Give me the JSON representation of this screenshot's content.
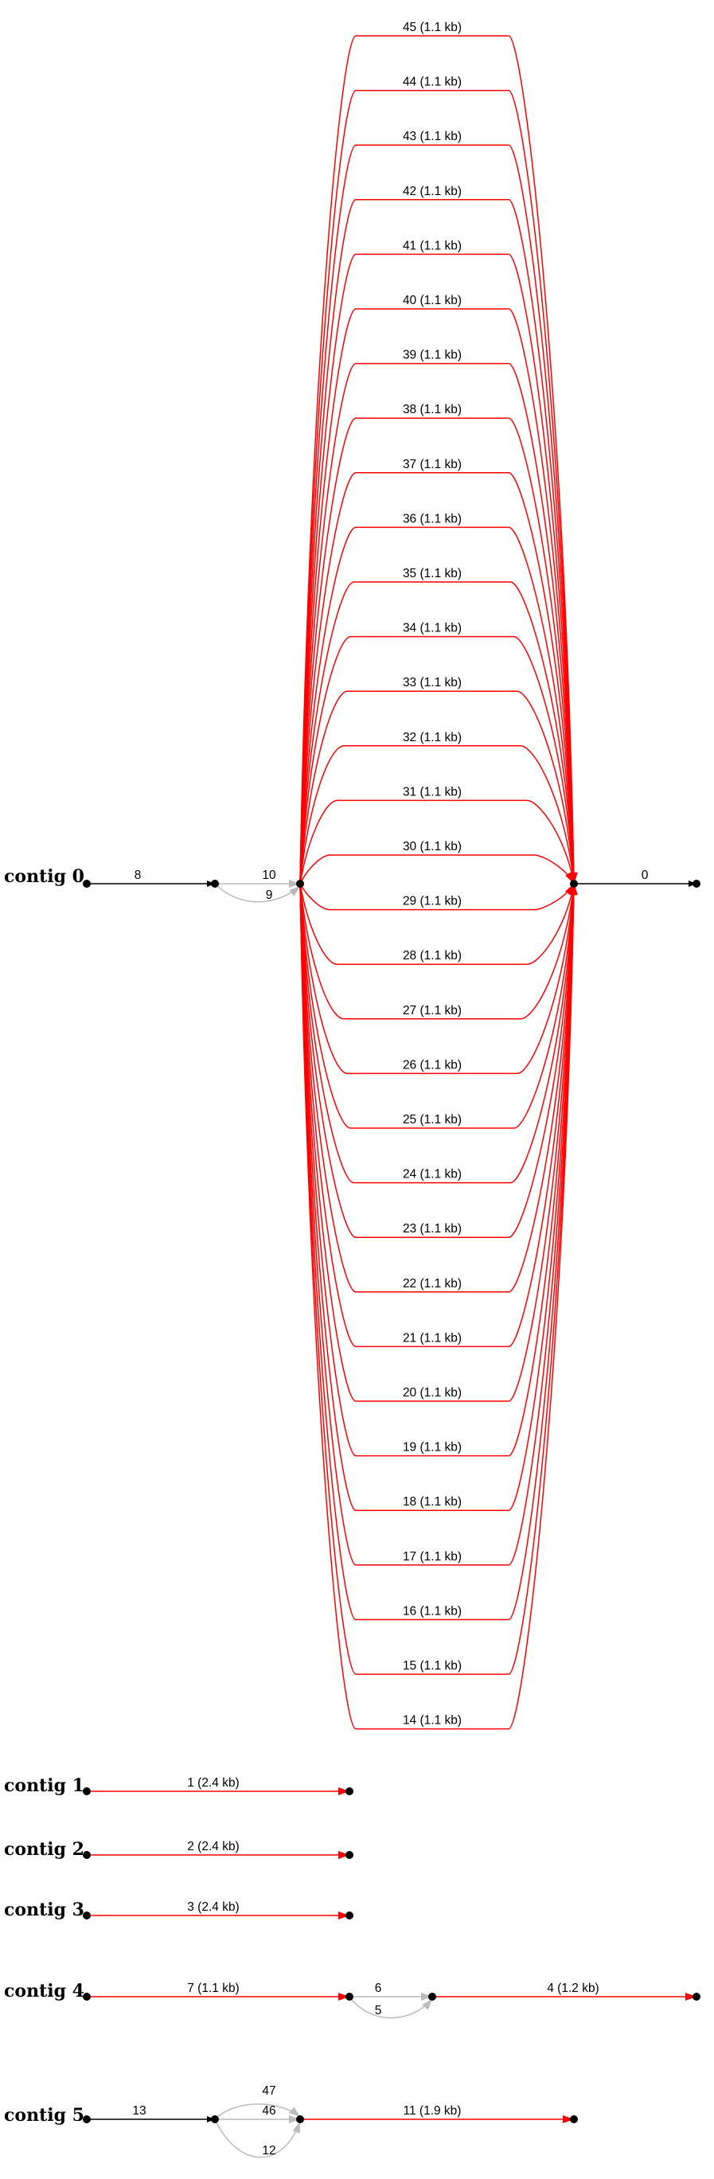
{
  "figure": {
    "kind": "assembly graph",
    "description_none": ""
  },
  "colors": {
    "unique": "#000000",
    "repeat": "#ff0000",
    "alt": "#bbbbbb",
    "node": "#000000"
  },
  "contigs": [
    {
      "name": "contig 0",
      "chain": [
        {
          "label": "8",
          "color": "unique"
        }
      ],
      "bubble": [
        {
          "label": "10",
          "color": "alt"
        },
        {
          "label": "9",
          "color": "alt"
        }
      ],
      "parallel": [
        "45 (1.1 kb)",
        "44 (1.1 kb)",
        "43 (1.1 kb)",
        "42 (1.1 kb)",
        "41 (1.1 kb)",
        "40 (1.1 kb)",
        "39 (1.1 kb)",
        "38 (1.1 kb)",
        "37 (1.1 kb)",
        "36 (1.1 kb)",
        "35 (1.1 kb)",
        "34 (1.1 kb)",
        "33 (1.1 kb)",
        "32 (1.1 kb)",
        "31 (1.1 kb)",
        "30 (1.1 kb)",
        "29 (1.1 kb)",
        "28 (1.1 kb)",
        "27 (1.1 kb)",
        "26 (1.1 kb)",
        "25 (1.1 kb)",
        "24 (1.1 kb)",
        "23 (1.1 kb)",
        "22 (1.1 kb)",
        "21 (1.1 kb)",
        "20 (1.1 kb)",
        "19 (1.1 kb)",
        "18 (1.1 kb)",
        "17 (1.1 kb)",
        "16 (1.1 kb)",
        "15 (1.1 kb)",
        "14 (1.1 kb)"
      ],
      "tail": {
        "label": "0",
        "color": "unique"
      }
    },
    {
      "name": "contig 1",
      "edges": [
        {
          "label": "1 (2.4 kb)",
          "color": "repeat"
        }
      ]
    },
    {
      "name": "contig 2",
      "edges": [
        {
          "label": "2 (2.4 kb)",
          "color": "repeat"
        }
      ]
    },
    {
      "name": "contig 3",
      "edges": [
        {
          "label": "3 (2.4 kb)",
          "color": "repeat"
        }
      ]
    },
    {
      "name": "contig 4",
      "edges": [
        {
          "label": "7 (1.1 kb)",
          "color": "repeat"
        },
        {
          "label": "6",
          "color": "alt"
        },
        {
          "label": "5",
          "color": "alt"
        },
        {
          "label": "4 (1.2 kb)",
          "color": "repeat"
        }
      ]
    },
    {
      "name": "contig 5",
      "edges": [
        {
          "label": "13",
          "color": "unique"
        },
        {
          "label": "47",
          "color": "alt"
        },
        {
          "label": "46",
          "color": "alt"
        },
        {
          "label": "12",
          "color": "alt"
        },
        {
          "label": "11 (1.9 kb)",
          "color": "repeat"
        }
      ]
    }
  ]
}
